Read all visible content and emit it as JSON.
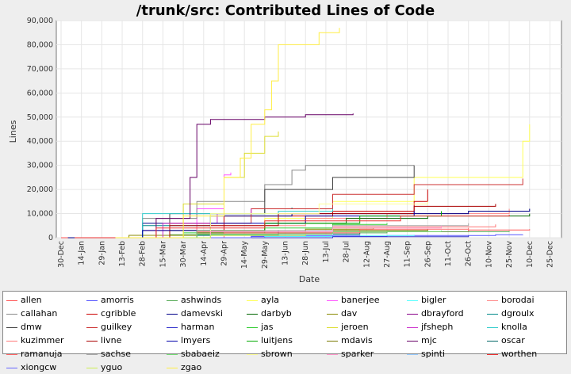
{
  "chart_data": {
    "type": "line",
    "title": "/trunk/src: Contributed Lines of Code",
    "xlabel": "Date",
    "ylabel": "Lines",
    "ylim": [
      0,
      90000
    ],
    "yticks": [
      "0",
      "10,000",
      "20,000",
      "30,000",
      "40,000",
      "50,000",
      "60,000",
      "70,000",
      "80,000",
      "90,000"
    ],
    "xticks": [
      "30-Dec",
      "14-Jan",
      "29-Jan",
      "13-Feb",
      "28-Feb",
      "15-Mar",
      "30-Mar",
      "14-Apr",
      "29-Apr",
      "14-May",
      "29-May",
      "13-Jun",
      "28-Jun",
      "13-Jul",
      "28-Jul",
      "12-Aug",
      "27-Aug",
      "11-Sep",
      "26-Sep",
      "11-Oct",
      "26-Oct",
      "10-Nov",
      "25-Nov",
      "10-Dec",
      "25-Dec"
    ],
    "grid": true,
    "legend_position": "bottom",
    "series": [
      {
        "name": "allen",
        "color": "#ff5555",
        "points": [
          [
            0,
            0
          ],
          [
            100,
            1500
          ],
          [
            200,
            2500
          ],
          [
            300,
            3200
          ],
          [
            345,
            3500
          ]
        ]
      },
      {
        "name": "amorris",
        "color": "#5555ff",
        "points": [
          [
            40,
            0
          ],
          [
            140,
            500
          ],
          [
            240,
            900
          ],
          [
            320,
            1200
          ],
          [
            340,
            1300
          ]
        ]
      },
      {
        "name": "ashwinds",
        "color": "#55aa55",
        "points": [
          [
            10,
            0
          ],
          [
            80,
            1200
          ],
          [
            160,
            2000
          ],
          [
            240,
            2500
          ],
          [
            330,
            2800
          ]
        ]
      },
      {
        "name": "ayla",
        "color": "#ffff55",
        "points": [
          [
            20,
            0
          ],
          [
            90,
            3000
          ],
          [
            150,
            8000
          ],
          [
            200,
            15000
          ],
          [
            260,
            25000
          ],
          [
            340,
            40000
          ],
          [
            345,
            47000
          ]
        ]
      },
      {
        "name": "banerjee",
        "color": "#ff55ff",
        "points": [
          [
            70,
            0
          ],
          [
            100,
            12000
          ],
          [
            120,
            26000
          ],
          [
            125,
            27000
          ]
        ]
      },
      {
        "name": "bigler",
        "color": "#55ffff",
        "points": [
          [
            100,
            0
          ],
          [
            150,
            500
          ],
          [
            200,
            900
          ],
          [
            260,
            1200
          ]
        ]
      },
      {
        "name": "borodai",
        "color": "#ff8888",
        "points": [
          [
            30,
            0
          ],
          [
            100,
            5000
          ],
          [
            180,
            8000
          ],
          [
            240,
            10000
          ],
          [
            330,
            12000
          ]
        ]
      },
      {
        "name": "callahan",
        "color": "#888888",
        "points": [
          [
            10,
            0
          ],
          [
            60,
            8000
          ],
          [
            100,
            15000
          ],
          [
            150,
            22000
          ],
          [
            170,
            28000
          ],
          [
            180,
            30000
          ],
          [
            260,
            30000
          ]
        ]
      },
      {
        "name": "cgribble",
        "color": "#cc0000",
        "points": [
          [
            10,
            0
          ],
          [
            60,
            3000
          ],
          [
            120,
            9000
          ],
          [
            200,
            11000
          ],
          [
            260,
            15000
          ],
          [
            270,
            20000
          ],
          [
            270,
            20000
          ]
        ]
      },
      {
        "name": "damevski",
        "color": "#000088",
        "points": [
          [
            5,
            0
          ],
          [
            60,
            6000
          ],
          [
            110,
            9000
          ],
          [
            170,
            10000
          ],
          [
            240,
            10000
          ],
          [
            300,
            11000
          ],
          [
            345,
            12000
          ]
        ]
      },
      {
        "name": "darbyb",
        "color": "#006600",
        "points": [
          [
            15,
            0
          ],
          [
            80,
            3000
          ],
          [
            150,
            6000
          ],
          [
            210,
            8000
          ],
          [
            270,
            9000
          ],
          [
            345,
            10000
          ]
        ]
      },
      {
        "name": "dav",
        "color": "#888800",
        "points": [
          [
            10,
            0
          ],
          [
            50,
            1000
          ],
          [
            110,
            2500
          ],
          [
            180,
            3500
          ],
          [
            230,
            4000
          ]
        ]
      },
      {
        "name": "dbrayford",
        "color": "#880088",
        "points": [
          [
            25,
            0
          ],
          [
            100,
            2000
          ],
          [
            160,
            3000
          ]
        ]
      },
      {
        "name": "dgroulx",
        "color": "#008888",
        "points": [
          [
            25,
            0
          ],
          [
            60,
            5000
          ],
          [
            110,
            10000
          ],
          [
            150,
            12000
          ],
          [
            170,
            12500
          ]
        ]
      },
      {
        "name": "dmw",
        "color": "#444444",
        "points": [
          [
            20,
            0
          ],
          [
            80,
            10000
          ],
          [
            150,
            20000
          ],
          [
            200,
            25000
          ],
          [
            260,
            30000
          ]
        ]
      },
      {
        "name": "guilkey",
        "color": "#cc3333",
        "points": [
          [
            10,
            0
          ],
          [
            80,
            6000
          ],
          [
            140,
            12000
          ],
          [
            200,
            18000
          ],
          [
            260,
            22000
          ],
          [
            340,
            24500
          ]
        ]
      },
      {
        "name": "harman",
        "color": "#3333cc",
        "points": [
          [
            120,
            0
          ],
          [
            200,
            400
          ],
          [
            300,
            900
          ]
        ]
      },
      {
        "name": "jas",
        "color": "#33cc33",
        "points": [
          [
            30,
            0
          ],
          [
            90,
            2000
          ],
          [
            150,
            4000
          ],
          [
            200,
            5500
          ],
          [
            240,
            6000
          ]
        ]
      },
      {
        "name": "jeroen",
        "color": "#dddd33",
        "points": [
          [
            40,
            0
          ],
          [
            90,
            14000
          ],
          [
            120,
            25000
          ],
          [
            135,
            35000
          ],
          [
            150,
            42000
          ],
          [
            160,
            44000
          ]
        ]
      },
      {
        "name": "jfsheph",
        "color": "#cc33cc",
        "points": [
          [
            25,
            0
          ],
          [
            75,
            6000
          ],
          [
            115,
            10000
          ],
          [
            140,
            12000
          ]
        ]
      },
      {
        "name": "knolla",
        "color": "#33cccc",
        "points": [
          [
            40,
            0
          ],
          [
            60,
            10000
          ],
          [
            120,
            10000
          ],
          [
            160,
            11000
          ],
          [
            200,
            12000
          ]
        ]
      },
      {
        "name": "kuzimmer",
        "color": "#ff7777",
        "points": [
          [
            30,
            0
          ],
          [
            100,
            2500
          ],
          [
            200,
            4500
          ],
          [
            320,
            5500
          ]
        ]
      },
      {
        "name": "livne",
        "color": "#aa0000",
        "points": [
          [
            15,
            0
          ],
          [
            80,
            5000
          ],
          [
            160,
            10000
          ],
          [
            260,
            13000
          ],
          [
            320,
            14000
          ]
        ]
      },
      {
        "name": "lmyers",
        "color": "#0000aa",
        "points": [
          [
            10,
            0
          ],
          [
            60,
            3000
          ],
          [
            110,
            6000
          ],
          [
            180,
            9000
          ],
          [
            260,
            11000
          ]
        ]
      },
      {
        "name": "luitjens",
        "color": "#00aa00",
        "points": [
          [
            50,
            0
          ],
          [
            100,
            3000
          ],
          [
            150,
            6000
          ],
          [
            220,
            9000
          ],
          [
            280,
            11000
          ]
        ]
      },
      {
        "name": "mdavis",
        "color": "#777700",
        "points": [
          [
            30,
            0
          ],
          [
            100,
            2000
          ],
          [
            200,
            3000
          ],
          [
            270,
            3500
          ]
        ]
      },
      {
        "name": "mjc",
        "color": "#660066",
        "points": [
          [
            20,
            0
          ],
          [
            70,
            8000
          ],
          [
            95,
            25000
          ],
          [
            100,
            47000
          ],
          [
            110,
            49000
          ],
          [
            150,
            50000
          ],
          [
            180,
            51000
          ],
          [
            215,
            51500
          ]
        ]
      },
      {
        "name": "oscar",
        "color": "#006666",
        "points": [
          [
            40,
            0
          ],
          [
            100,
            1000
          ],
          [
            160,
            1500
          ],
          [
            220,
            2000
          ]
        ]
      },
      {
        "name": "ramanuja",
        "color": "#ff6666",
        "points": [
          [
            50,
            0
          ],
          [
            120,
            2000
          ],
          [
            220,
            3500
          ],
          [
            300,
            4000
          ]
        ]
      },
      {
        "name": "sachse",
        "color": "#aaaaaa",
        "points": [
          [
            30,
            0
          ],
          [
            100,
            3000
          ],
          [
            200,
            5000
          ],
          [
            300,
            6000
          ]
        ]
      },
      {
        "name": "sbabaeiz",
        "color": "#77dd77",
        "points": [
          [
            30,
            0
          ],
          [
            100,
            1500
          ],
          [
            200,
            2500
          ],
          [
            280,
            3000
          ]
        ]
      },
      {
        "name": "sbrown",
        "color": "#ffff99",
        "points": [
          [
            30,
            0
          ],
          [
            110,
            10000
          ],
          [
            190,
            14000
          ],
          [
            270,
            15000
          ]
        ]
      },
      {
        "name": "sparker",
        "color": "#ff99cc",
        "points": [
          [
            40,
            0
          ],
          [
            110,
            2500
          ],
          [
            200,
            4000
          ],
          [
            280,
            5000
          ]
        ]
      },
      {
        "name": "spinti",
        "color": "#99ccff",
        "points": [
          [
            30,
            0
          ],
          [
            110,
            1000
          ],
          [
            200,
            1600
          ]
        ]
      },
      {
        "name": "worthen",
        "color": "#ee3333",
        "points": [
          [
            10,
            0
          ],
          [
            70,
            4000
          ],
          [
            150,
            7000
          ],
          [
            250,
            9000
          ],
          [
            330,
            9500
          ]
        ]
      },
      {
        "name": "xiongcw",
        "color": "#6666ff",
        "points": [
          [
            60,
            0
          ],
          [
            140,
            800
          ],
          [
            220,
            1100
          ]
        ]
      },
      {
        "name": "yguo",
        "color": "#ccee55",
        "points": [
          [
            50,
            0
          ],
          [
            110,
            900
          ],
          [
            180,
            1400
          ]
        ]
      },
      {
        "name": "zgao",
        "color": "#ffee44",
        "points": [
          [
            40,
            0
          ],
          [
            90,
            9000
          ],
          [
            120,
            25000
          ],
          [
            132,
            33000
          ],
          [
            140,
            47000
          ],
          [
            150,
            53000
          ],
          [
            155,
            65000
          ],
          [
            160,
            80000
          ],
          [
            190,
            85000
          ],
          [
            205,
            87000
          ]
        ]
      }
    ]
  }
}
